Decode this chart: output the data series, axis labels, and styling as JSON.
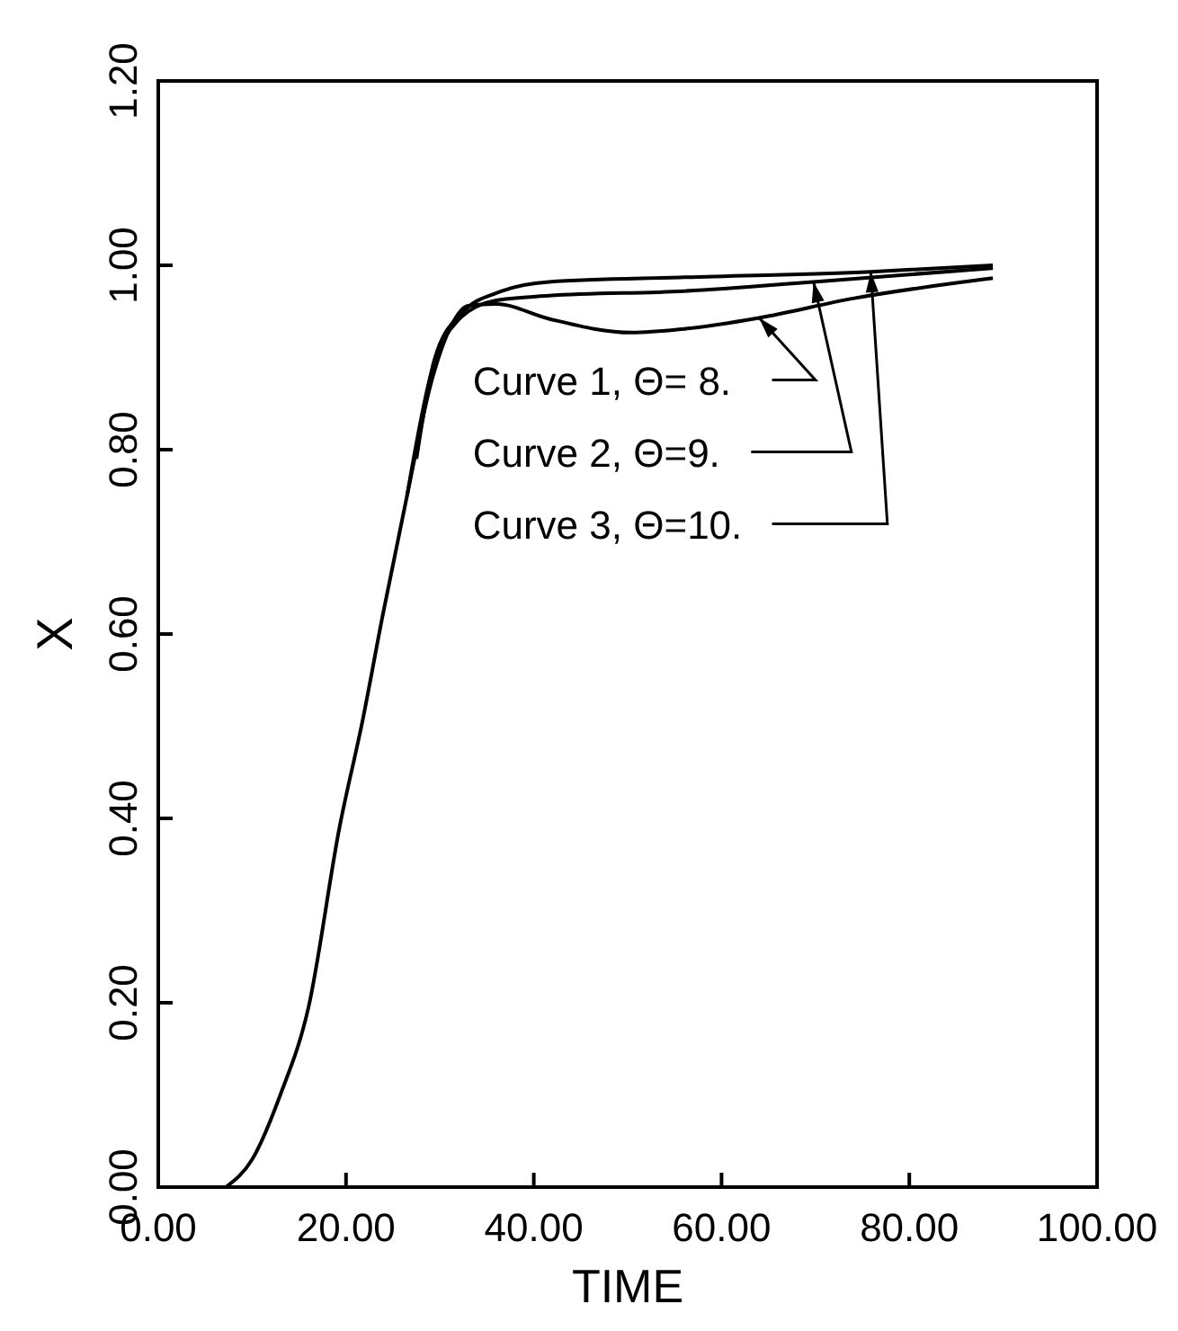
{
  "chart_data": {
    "type": "line",
    "xlabel": "TIME",
    "ylabel": "X",
    "xlim": [
      0,
      100
    ],
    "ylim": [
      0,
      1.2
    ],
    "xticks": [
      {
        "value": 0,
        "label": "0.00"
      },
      {
        "value": 20,
        "label": "20.00"
      },
      {
        "value": 40,
        "label": "40.00"
      },
      {
        "value": 60,
        "label": "60.00"
      },
      {
        "value": 80,
        "label": "80.00"
      },
      {
        "value": 100,
        "label": "100.00"
      }
    ],
    "yticks": [
      {
        "value": 0,
        "label": "0.00"
      },
      {
        "value": 0.2,
        "label": "0.20"
      },
      {
        "value": 0.4,
        "label": "0.40"
      },
      {
        "value": 0.6,
        "label": "0.60"
      },
      {
        "value": 0.8,
        "label": "0.80"
      },
      {
        "value": 1,
        "label": "1.00"
      },
      {
        "value": 1.2,
        "label": "1.20"
      }
    ],
    "grid": false,
    "marker": "none",
    "line_style": "solid",
    "series": [
      {
        "color": "#000000",
        "x": [
          7.2,
          10,
          13,
          16,
          19.3,
          21.8,
          23.9,
          26.5,
          29,
          31,
          33,
          36,
          41.6,
          50.4,
          56,
          64,
          74,
          88.9
        ],
        "values": [
          0,
          0.03,
          0.1,
          0.195,
          0.39,
          0.508,
          0.62,
          0.75,
          0.87,
          0.93,
          0.956,
          0.958,
          0.942,
          0.927,
          0.931,
          0.943,
          0.964,
          0.986
        ]
      },
      {
        "color": "#000000",
        "x": [
          26.5,
          29,
          32.3,
          36,
          41.6,
          56,
          69.8,
          88.9
        ],
        "values": [
          0.75,
          0.88,
          0.944,
          0.962,
          0.967,
          0.972,
          0.982,
          0.997
        ]
      },
      {
        "color": "#000000",
        "x": [
          27.5,
          29.4,
          32.3,
          36.6,
          41.6,
          56,
          75.9,
          88.9
        ],
        "values": [
          0.79,
          0.897,
          0.948,
          0.972,
          0.982,
          0.987,
          0.993,
          1.0
        ]
      }
    ],
    "annotations": [
      {
        "text": "Curve 1, Θ= 8.",
        "x": 64,
        "y": 0.943
      },
      {
        "text": "Curve 2, Θ=9.",
        "x": 69.8,
        "y": 0.982
      },
      {
        "text": "Curve 3, Θ=10.",
        "x": 75.9,
        "y": 0.993
      }
    ]
  }
}
